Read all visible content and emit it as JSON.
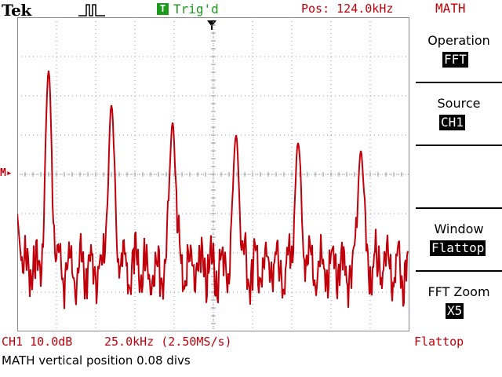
{
  "header": {
    "brand": "Tek",
    "acquisition_icon": "pulse-waveform-icon",
    "trigger_badge": "T",
    "trigger_status": "Trig'd",
    "position": "Pos: 124.0kHz",
    "menu_title": "MATH"
  },
  "side_menu": {
    "operation_label": "Operation",
    "operation_value": "FFT",
    "source_label": "Source",
    "source_value": "CH1",
    "window_label": "Window",
    "window_value": "Flattop",
    "zoom_label": "FFT Zoom",
    "zoom_value": "X5"
  },
  "markers": {
    "math_reference": "M▸"
  },
  "status": {
    "channel_scale": "CH1 10.0dB",
    "horizontal_scale": "25.0kHz (2.50MS/s)",
    "window": "Flattop",
    "message": "MATH vertical position 0.08 divs"
  },
  "colors": {
    "trace": "#c0000a",
    "trigger": "#1a9c1a"
  }
}
